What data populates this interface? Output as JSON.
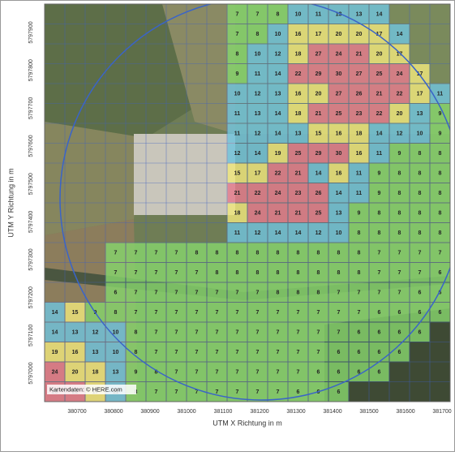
{
  "map": {
    "x_axis_title": "UTM X Richtung in m",
    "y_axis_title": "UTM Y Richtung in m",
    "attribution": "Kartendaten: © HERE.com",
    "x_ticks": [
      "380700",
      "380800",
      "380900",
      "381000",
      "381100",
      "381200",
      "381300",
      "381400",
      "381500",
      "381600",
      "381700"
    ],
    "y_ticks": [
      "5797900",
      "5797800",
      "5797700",
      "5797600",
      "5797500",
      "5797400",
      "5797300",
      "5797200",
      "5797100",
      "5797000"
    ],
    "color_scale": [
      {
        "min": 0,
        "color": "#86d46c"
      },
      {
        "min": 10,
        "color": "#70c3dd"
      },
      {
        "min": 15,
        "color": "#f0e67c"
      },
      {
        "min": 21,
        "color": "#e57b8e"
      }
    ],
    "grid": {
      "rows": [
        [
          null,
          null,
          null,
          null,
          null,
          null,
          null,
          null,
          null,
          7,
          7,
          8,
          10,
          11,
          13,
          13,
          14,
          null,
          null,
          null
        ],
        [
          null,
          null,
          null,
          null,
          null,
          null,
          null,
          null,
          null,
          7,
          8,
          10,
          16,
          17,
          20,
          20,
          17,
          14,
          null,
          null
        ],
        [
          null,
          null,
          null,
          null,
          null,
          null,
          null,
          null,
          null,
          8,
          10,
          12,
          18,
          27,
          24,
          21,
          20,
          17,
          null,
          null
        ],
        [
          null,
          null,
          null,
          null,
          null,
          null,
          null,
          null,
          null,
          9,
          11,
          14,
          22,
          29,
          30,
          27,
          25,
          24,
          17,
          null
        ],
        [
          null,
          null,
          null,
          null,
          null,
          null,
          null,
          null,
          null,
          10,
          12,
          13,
          16,
          20,
          27,
          26,
          21,
          22,
          17,
          11
        ],
        [
          null,
          null,
          null,
          null,
          null,
          null,
          null,
          null,
          null,
          11,
          13,
          14,
          18,
          21,
          25,
          23,
          22,
          20,
          13,
          9
        ],
        [
          null,
          null,
          null,
          null,
          null,
          null,
          null,
          null,
          null,
          11,
          12,
          14,
          13,
          15,
          16,
          18,
          14,
          12,
          10,
          9
        ],
        [
          null,
          null,
          null,
          null,
          null,
          null,
          null,
          null,
          null,
          12,
          14,
          19,
          25,
          29,
          30,
          16,
          11,
          9,
          8,
          8
        ],
        [
          null,
          null,
          null,
          null,
          null,
          null,
          null,
          null,
          null,
          15,
          17,
          22,
          21,
          14,
          16,
          11,
          9,
          8,
          8,
          8
        ],
        [
          null,
          null,
          null,
          null,
          null,
          null,
          null,
          null,
          null,
          21,
          22,
          24,
          23,
          26,
          14,
          11,
          9,
          8,
          8,
          8
        ],
        [
          null,
          null,
          null,
          null,
          null,
          null,
          null,
          null,
          null,
          18,
          24,
          21,
          21,
          25,
          13,
          9,
          8,
          8,
          8,
          8
        ],
        [
          null,
          null,
          null,
          null,
          null,
          null,
          null,
          null,
          null,
          11,
          12,
          14,
          14,
          12,
          10,
          8,
          8,
          8,
          8,
          8
        ],
        [
          null,
          null,
          null,
          7,
          7,
          7,
          7,
          8,
          8,
          8,
          8,
          8,
          8,
          8,
          8,
          8,
          7,
          7,
          7,
          7
        ],
        [
          null,
          null,
          null,
          7,
          7,
          7,
          7,
          7,
          8,
          8,
          8,
          8,
          8,
          8,
          8,
          8,
          7,
          7,
          7,
          6
        ],
        [
          null,
          null,
          null,
          6,
          7,
          7,
          7,
          7,
          7,
          7,
          7,
          8,
          8,
          8,
          7,
          7,
          7,
          7,
          6,
          6
        ],
        [
          14,
          15,
          9,
          8,
          7,
          7,
          7,
          7,
          7,
          7,
          7,
          7,
          7,
          7,
          7,
          7,
          6,
          6,
          6,
          6
        ],
        [
          14,
          13,
          12,
          10,
          8,
          7,
          7,
          7,
          7,
          7,
          7,
          7,
          7,
          7,
          7,
          6,
          6,
          6,
          6,
          null
        ],
        [
          19,
          16,
          13,
          10,
          8,
          7,
          7,
          7,
          7,
          7,
          7,
          7,
          7,
          7,
          6,
          6,
          6,
          6,
          null,
          null
        ],
        [
          24,
          20,
          18,
          13,
          9,
          8,
          7,
          7,
          7,
          7,
          7,
          7,
          7,
          6,
          6,
          6,
          6,
          null,
          null,
          null
        ],
        [
          26,
          22,
          17,
          11,
          8,
          7,
          7,
          7,
          7,
          7,
          7,
          7,
          6,
          6,
          6,
          null,
          null,
          null,
          null,
          null
        ]
      ]
    }
  }
}
